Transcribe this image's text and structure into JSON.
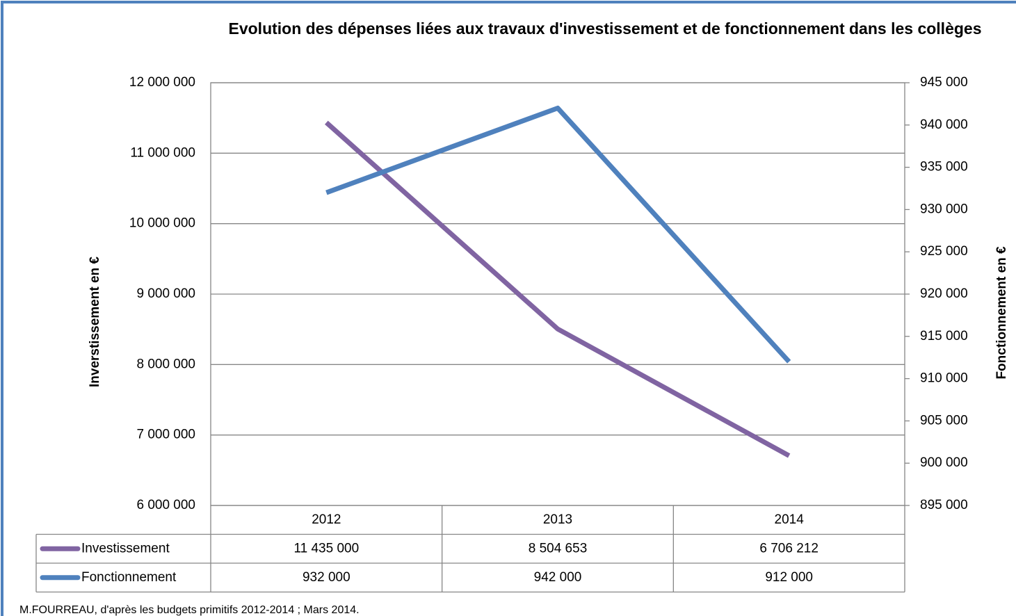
{
  "chart_data": {
    "type": "line",
    "title": "Evolution des dépenses liées aux travaux d'investissement et de fonctionnement dans les collèges",
    "y_label": "Inverstissement en €",
    "y2_label": "Fonctionnement en €",
    "note": "M.FOURREAU, d'après les budgets primitifs 2012-2014 ; Mars 2014.",
    "categories": [
      "2012",
      "2013",
      "2014"
    ],
    "series": [
      {
        "name": "Investissement",
        "color": "#8064a2",
        "values": [
          11435000,
          8504653,
          6706212
        ],
        "value_labels": [
          "11 435 000",
          "8 504 653",
          "6 706 212"
        ]
      },
      {
        "name": "Fonctionnement",
        "color": "#4f81bd",
        "axis": "y2",
        "values": [
          932000,
          942000,
          912000
        ],
        "value_labels": [
          "932 000",
          "942 000",
          "912 000"
        ]
      }
    ],
    "ylim": [
      6000000,
      12000000
    ],
    "yticks": [
      {
        "value": 6000000,
        "label": "6 000 000"
      },
      {
        "value": 7000000,
        "label": "7 000 000"
      },
      {
        "value": 8000000,
        "label": "8 000 000"
      },
      {
        "value": 9000000,
        "label": "9 000 000"
      },
      {
        "value": 10000000,
        "label": "10 000 000"
      },
      {
        "value": 11000000,
        "label": "11 000 000"
      },
      {
        "value": 12000000,
        "label": "12 000 000"
      }
    ],
    "y2lim": [
      895000,
      945000
    ],
    "y2ticks": [
      {
        "value": 895000,
        "label": "895 000"
      },
      {
        "value": 900000,
        "label": "900 000"
      },
      {
        "value": 905000,
        "label": "905 000"
      },
      {
        "value": 910000,
        "label": "910 000"
      },
      {
        "value": 915000,
        "label": "915 000"
      },
      {
        "value": 920000,
        "label": "920 000"
      },
      {
        "value": 925000,
        "label": "925 000"
      },
      {
        "value": 930000,
        "label": "930 000"
      },
      {
        "value": 935000,
        "label": "935 000"
      },
      {
        "value": 940000,
        "label": "940 000"
      },
      {
        "value": 945000,
        "label": "945 000"
      }
    ],
    "grid": true,
    "data_table": true
  }
}
